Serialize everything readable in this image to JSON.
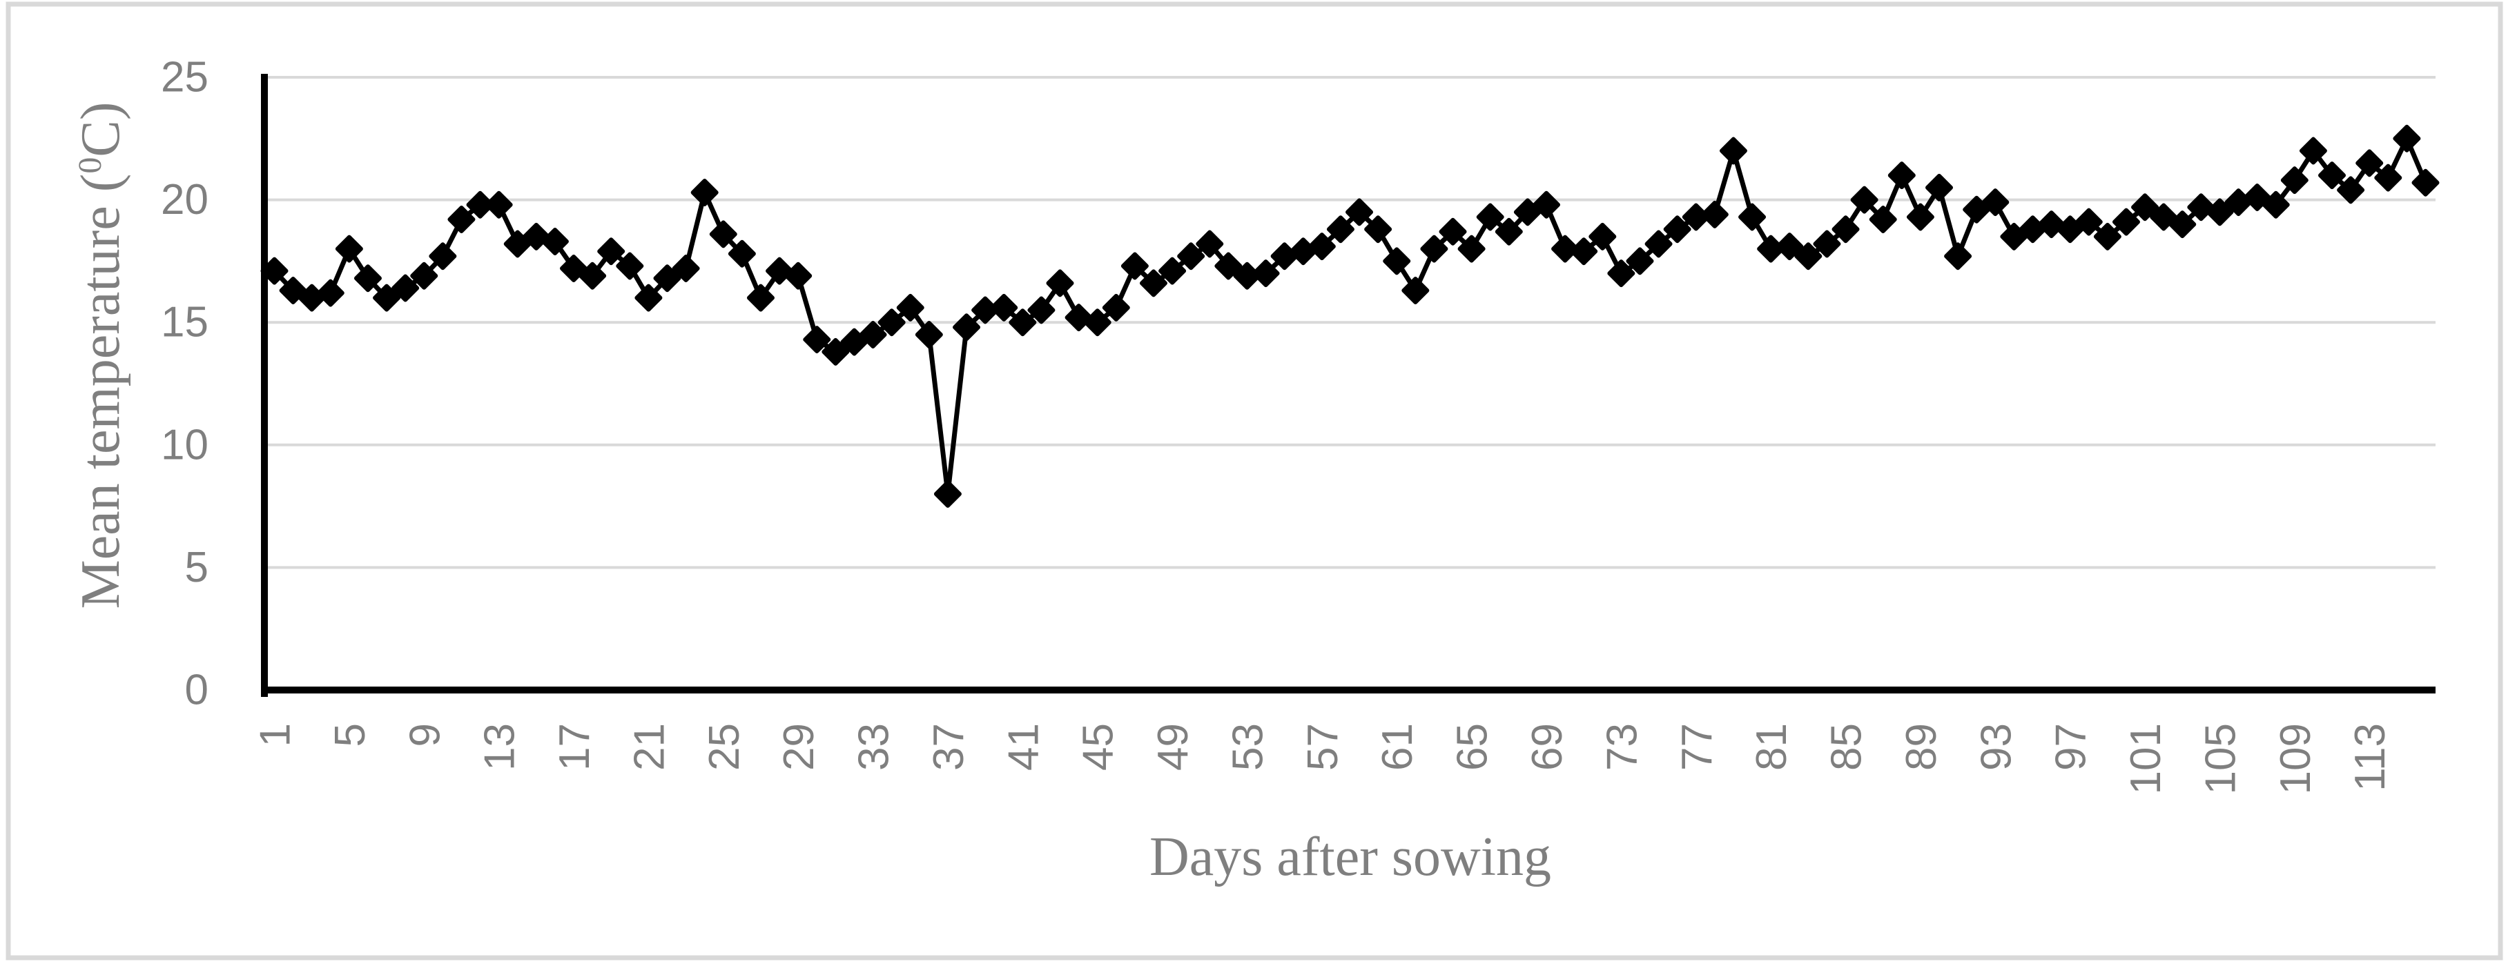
{
  "chart_data": {
    "type": "line",
    "title": "",
    "xlabel": "Days after sowing",
    "ylabel": "Mean temperature (0C)",
    "ylabel_parts": {
      "pre": "Mean temperature (",
      "sup": "0",
      "post": "C)"
    },
    "x_range": [
      1,
      116
    ],
    "n_points": 116,
    "x_tick_start": 1,
    "x_tick_step": 4,
    "x_ticks": [
      1,
      5,
      9,
      13,
      17,
      21,
      25,
      29,
      33,
      37,
      41,
      45,
      49,
      53,
      57,
      61,
      65,
      69,
      73,
      77,
      81,
      85,
      89,
      93,
      97,
      101,
      105,
      109,
      113
    ],
    "y_ticks": [
      0,
      5,
      10,
      15,
      20,
      25
    ],
    "ylim": [
      0,
      25
    ],
    "grid": "horizontal",
    "legend": "none",
    "marker": "diamond",
    "line_color": "#000000",
    "marker_color": "#000000",
    "grid_color": "#d9d9d9",
    "axis_color": "#000000",
    "label_color": "#7f7f7f",
    "border_color": "#d9d9d9",
    "series": [
      {
        "name": "Mean temperature",
        "values": [
          17.1,
          16.3,
          16.0,
          16.2,
          18.0,
          16.8,
          16.0,
          16.4,
          16.9,
          17.7,
          19.2,
          19.8,
          19.8,
          18.2,
          18.5,
          18.3,
          17.2,
          16.9,
          17.9,
          17.3,
          16.0,
          16.8,
          17.2,
          20.3,
          18.6,
          17.8,
          16.0,
          17.1,
          16.9,
          14.3,
          13.8,
          14.2,
          14.5,
          15.0,
          15.6,
          14.5,
          8.0,
          14.8,
          15.5,
          15.6,
          15.0,
          15.5,
          16.6,
          15.2,
          15.0,
          15.6,
          17.3,
          16.6,
          17.1,
          17.7,
          18.2,
          17.3,
          16.9,
          17.0,
          17.7,
          17.9,
          18.1,
          18.8,
          19.5,
          18.8,
          17.5,
          16.3,
          18.0,
          18.7,
          18.0,
          19.3,
          18.7,
          19.5,
          19.8,
          18.0,
          17.9,
          18.5,
          17.0,
          17.5,
          18.2,
          18.8,
          19.3,
          19.4,
          22.0,
          19.3,
          18.0,
          18.1,
          17.7,
          18.2,
          18.8,
          20.0,
          19.2,
          21.0,
          19.3,
          20.5,
          17.7,
          19.6,
          19.9,
          18.5,
          18.8,
          19.0,
          18.8,
          19.1,
          18.5,
          19.1,
          19.7,
          19.3,
          19.0,
          19.7,
          19.5,
          19.9,
          20.1,
          19.8,
          20.8,
          22.0,
          21.0,
          20.4,
          21.5,
          20.9,
          22.5,
          20.7
        ]
      }
    ]
  }
}
